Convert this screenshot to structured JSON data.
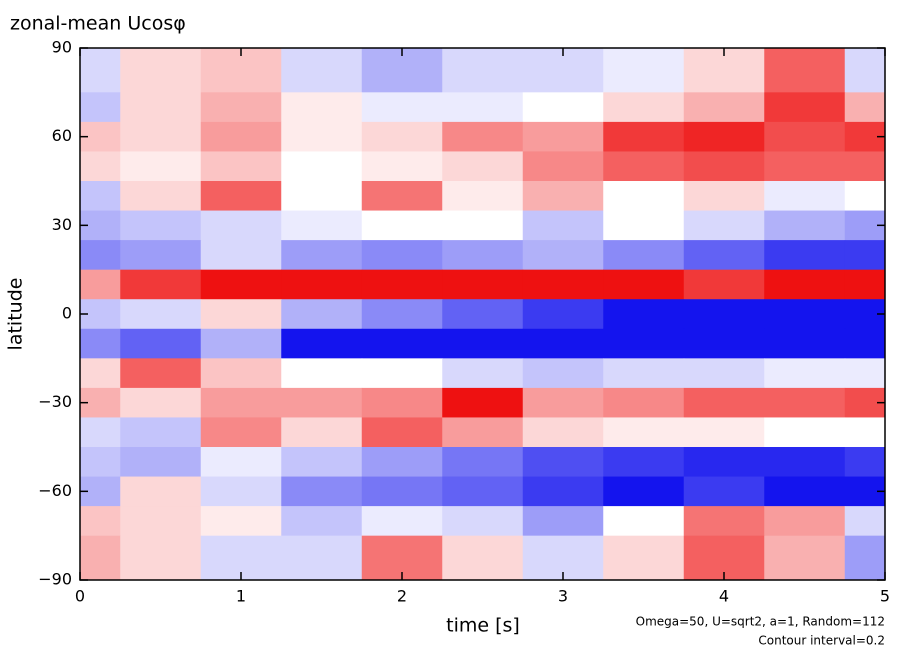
{
  "chart_data": {
    "type": "heatmap",
    "title": "zonal-mean Ucosφ",
    "x_label": "time [s]",
    "y_label": "latitude",
    "annotations": [
      "Omega=50, U=sqrt2, a=1, Random=112",
      "Contour interval=0.2"
    ],
    "x": [
      0,
      0.5,
      1,
      1.5,
      2,
      2.5,
      3,
      3.5,
      4,
      4.5,
      5
    ],
    "y": [
      80,
      70,
      60,
      50,
      40,
      30,
      20,
      10,
      0,
      -10,
      -20,
      -30,
      -40,
      -50,
      -60,
      -70,
      -80
    ],
    "z": [
      [
        -0.4,
        0.4,
        0.6,
        -0.4,
        -0.8,
        -0.4,
        -0.4,
        -0.2,
        0.4,
        1.6,
        -0.4
      ],
      [
        -0.6,
        0.4,
        0.8,
        0.2,
        -0.2,
        -0.2,
        0,
        0.4,
        0.8,
        2.0,
        0.8
      ],
      [
        0.6,
        0.4,
        1.0,
        0.2,
        0.4,
        1.2,
        1.0,
        2.0,
        2.2,
        1.8,
        2.0
      ],
      [
        0.4,
        0.2,
        0.6,
        0,
        0.2,
        0.4,
        1.2,
        1.6,
        1.8,
        1.6,
        1.6
      ],
      [
        -0.6,
        0.4,
        1.6,
        0,
        1.4,
        0.2,
        0.8,
        0,
        0.4,
        -0.2,
        0
      ],
      [
        -0.8,
        -0.6,
        -0.4,
        -0.2,
        0,
        0,
        -0.6,
        0,
        -0.4,
        -0.8,
        -1.0
      ],
      [
        -1.2,
        -1.0,
        -0.4,
        -1.0,
        -1.2,
        -1.0,
        -0.8,
        -1.2,
        -1.6,
        -2.0,
        -2.0
      ],
      [
        1.0,
        2.0,
        2.4,
        2.4,
        2.8,
        3.0,
        3.2,
        2.4,
        2.0,
        3.0,
        3.2
      ],
      [
        -0.6,
        -0.4,
        0.4,
        -0.8,
        -1.2,
        -1.6,
        -2.0,
        -2.4,
        -2.4,
        -2.4,
        -2.4
      ],
      [
        -1.2,
        -1.6,
        -0.8,
        -2.4,
        -3.0,
        -3.6,
        -3.6,
        -3.6,
        -3.6,
        -3.6,
        -3.8
      ],
      [
        0.4,
        1.6,
        0.6,
        0,
        0,
        -0.4,
        -0.6,
        -0.4,
        -0.4,
        -0.2,
        -0.2
      ],
      [
        0.8,
        0.4,
        1.0,
        1.0,
        1.2,
        2.4,
        1.0,
        1.2,
        1.6,
        1.6,
        1.8
      ],
      [
        -0.4,
        -0.6,
        1.2,
        0.4,
        1.6,
        1.0,
        0.4,
        0.2,
        0.2,
        0,
        0
      ],
      [
        -0.6,
        -0.8,
        -0.2,
        -0.6,
        -1.0,
        -1.4,
        -1.8,
        -2.0,
        -2.2,
        -2.2,
        -2.0
      ],
      [
        -0.8,
        0.4,
        -0.4,
        -1.2,
        -1.4,
        -1.6,
        -2.0,
        -2.4,
        -2.0,
        -2.4,
        -2.6
      ],
      [
        0.6,
        0.4,
        0.2,
        -0.6,
        -0.2,
        -0.4,
        -1.0,
        0,
        1.4,
        1.0,
        -0.4
      ],
      [
        0.8,
        0.4,
        -0.4,
        -0.4,
        1.4,
        0.4,
        -0.4,
        0.4,
        1.6,
        0.8,
        -1.0
      ]
    ],
    "positive_color": "#ee1111",
    "negative_color": "#1414ee",
    "xlim": [
      0,
      5
    ],
    "xticks": [
      0,
      1,
      2,
      3,
      4,
      5
    ],
    "ylim": [
      -90,
      90
    ],
    "yticks": [
      {
        "value": -90,
        "label": "−90"
      },
      {
        "value": -60,
        "label": "−60"
      },
      {
        "value": -30,
        "label": "−30"
      },
      0,
      30,
      60,
      90
    ]
  }
}
